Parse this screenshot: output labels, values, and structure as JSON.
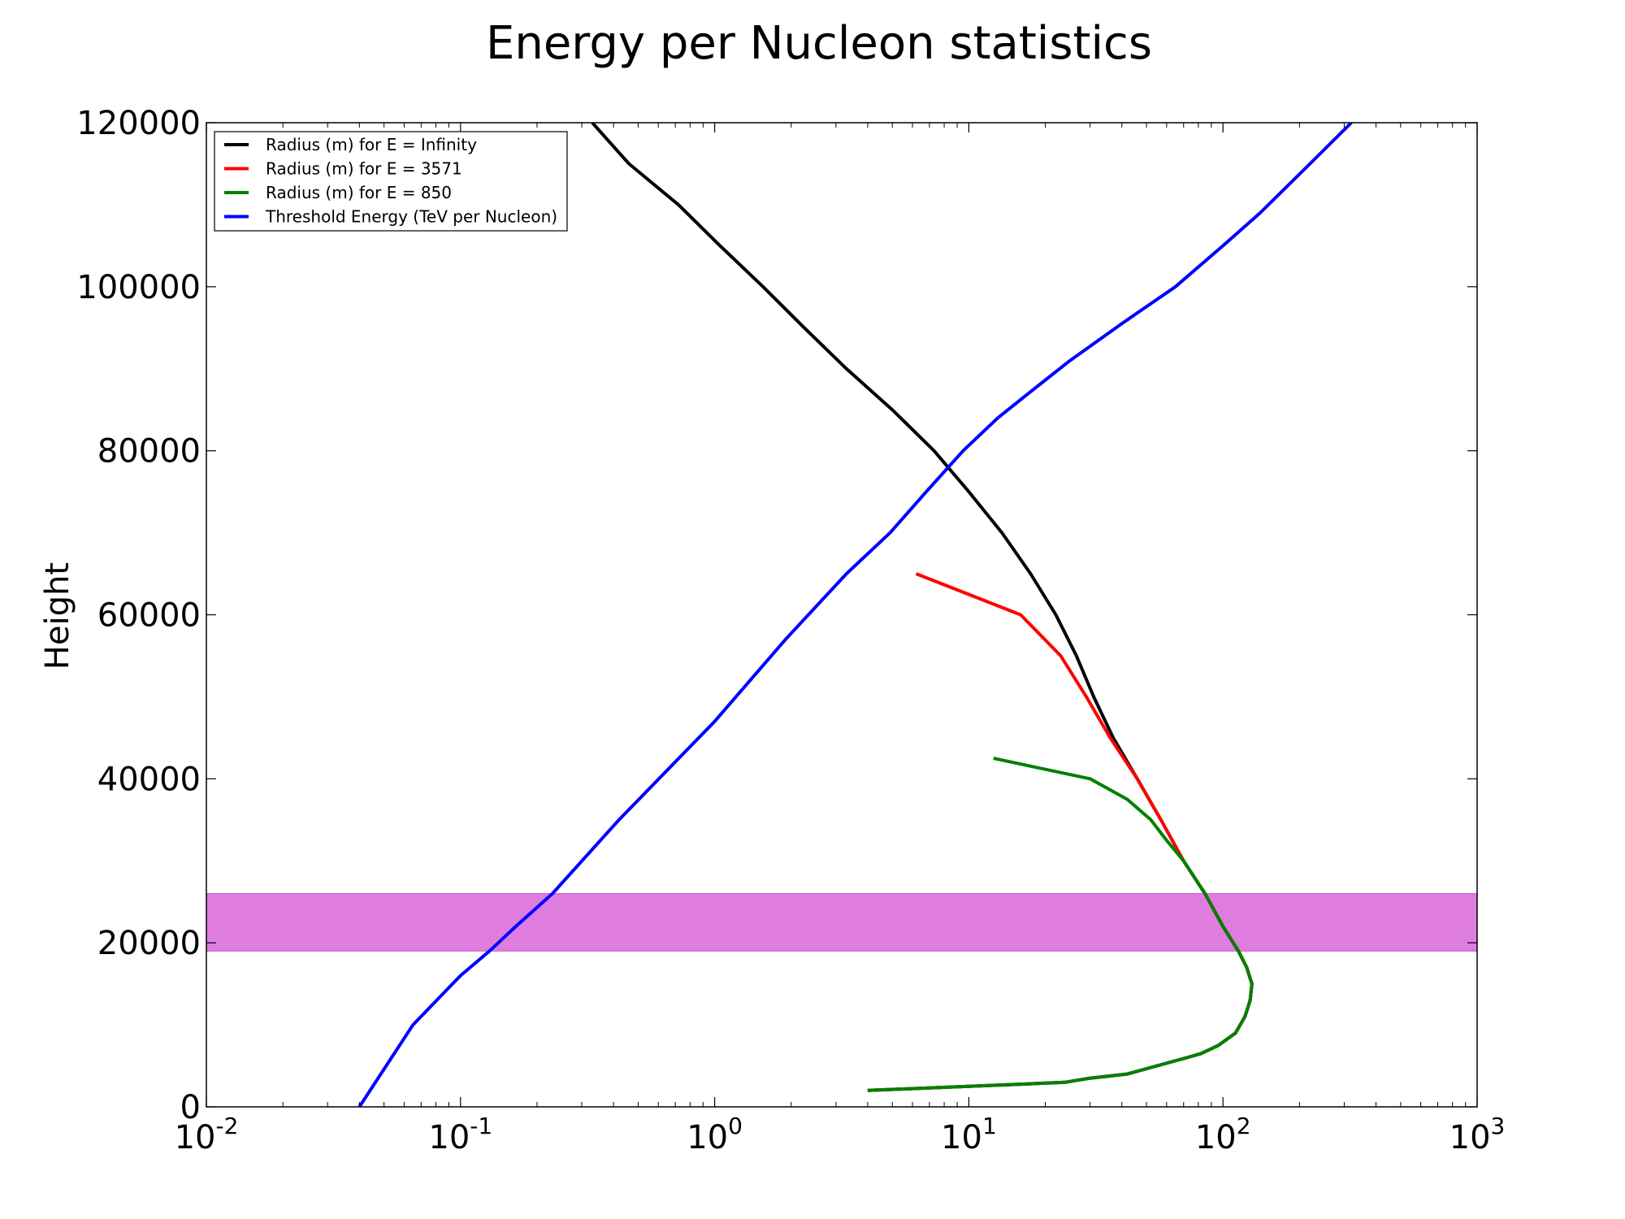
{
  "chart_data": {
    "type": "line",
    "title": "Energy per Nucleon statistics",
    "xlabel": "",
    "ylabel": "Height",
    "xscale": "log",
    "xlim": [
      0.01,
      1000
    ],
    "ylim": [
      0,
      120000
    ],
    "x_ticks": [
      {
        "value": 0.01,
        "base": "10",
        "exp": "-2"
      },
      {
        "value": 0.1,
        "base": "10",
        "exp": "-1"
      },
      {
        "value": 1,
        "base": "10",
        "exp": "0"
      },
      {
        "value": 10,
        "base": "10",
        "exp": "1"
      },
      {
        "value": 100,
        "base": "10",
        "exp": "2"
      },
      {
        "value": 1000,
        "base": "10",
        "exp": "3"
      }
    ],
    "y_ticks": [
      {
        "value": 0,
        "label": "0"
      },
      {
        "value": 20000,
        "label": "20000"
      },
      {
        "value": 40000,
        "label": "40000"
      },
      {
        "value": 60000,
        "label": "60000"
      },
      {
        "value": 80000,
        "label": "80000"
      },
      {
        "value": 100000,
        "label": "100000"
      },
      {
        "value": 120000,
        "label": "120000"
      }
    ],
    "grid": false,
    "legend_position": "top-left",
    "shaded_band": {
      "y_from": 19000,
      "y_to": 26000,
      "color": "#df7ddf"
    },
    "series": [
      {
        "name": "Radius (m) for E = Infinity",
        "color": "#000000",
        "points": [
          [
            0.33,
            120000
          ],
          [
            0.46,
            115000
          ],
          [
            0.72,
            110000
          ],
          [
            1.05,
            105000
          ],
          [
            1.55,
            100000
          ],
          [
            2.25,
            95000
          ],
          [
            3.3,
            90000
          ],
          [
            5.0,
            85000
          ],
          [
            7.3,
            80000
          ],
          [
            10.0,
            75000
          ],
          [
            13.5,
            70000
          ],
          [
            17.5,
            65000
          ],
          [
            22.0,
            60000
          ],
          [
            26.5,
            55000
          ],
          [
            31.0,
            50000
          ],
          [
            37.0,
            45000
          ],
          [
            46.0,
            40000
          ],
          [
            57.0,
            35000
          ],
          [
            70.0,
            30000
          ],
          [
            85.0,
            26000
          ],
          [
            100.0,
            22000
          ],
          [
            115.0,
            19000
          ],
          [
            124.0,
            17000
          ],
          [
            130.0,
            15000
          ],
          [
            128.0,
            13000
          ],
          [
            122.0,
            11000
          ],
          [
            112.0,
            9000
          ],
          [
            96.0,
            7500
          ],
          [
            82.0,
            6500
          ],
          [
            72.0,
            6000
          ],
          [
            55.0,
            5000
          ],
          [
            42.0,
            4000
          ],
          [
            30.0,
            3500
          ],
          [
            24.0,
            3000
          ],
          [
            12.0,
            2600
          ],
          [
            4.0,
            2000
          ]
        ]
      },
      {
        "name": "Radius (m) for E = 3571",
        "color": "#ff0000",
        "points": [
          [
            6.2,
            65000
          ],
          [
            16.0,
            60000
          ],
          [
            23.0,
            55000
          ],
          [
            29.0,
            50000
          ],
          [
            36.0,
            45000
          ],
          [
            46.0,
            40000
          ],
          [
            57.0,
            35000
          ],
          [
            70.0,
            30000
          ],
          [
            85.0,
            26000
          ],
          [
            100.0,
            22000
          ],
          [
            115.0,
            19000
          ],
          [
            124.0,
            17000
          ],
          [
            130.0,
            15000
          ],
          [
            128.0,
            13000
          ],
          [
            122.0,
            11000
          ],
          [
            112.0,
            9000
          ],
          [
            96.0,
            7500
          ],
          [
            82.0,
            6500
          ],
          [
            72.0,
            6000
          ],
          [
            55.0,
            5000
          ],
          [
            42.0,
            4000
          ],
          [
            30.0,
            3500
          ],
          [
            24.0,
            3000
          ],
          [
            12.0,
            2600
          ],
          [
            4.0,
            2000
          ]
        ]
      },
      {
        "name": "Radius (m) for E = 850",
        "color": "#008000",
        "points": [
          [
            12.5,
            42500
          ],
          [
            30.0,
            40000
          ],
          [
            42.0,
            37500
          ],
          [
            52.0,
            35000
          ],
          [
            60.0,
            32500
          ],
          [
            70.0,
            30000
          ],
          [
            85.0,
            26000
          ],
          [
            100.0,
            22000
          ],
          [
            115.0,
            19000
          ],
          [
            124.0,
            17000
          ],
          [
            130.0,
            15000
          ],
          [
            128.0,
            13000
          ],
          [
            122.0,
            11000
          ],
          [
            112.0,
            9000
          ],
          [
            96.0,
            7500
          ],
          [
            82.0,
            6500
          ],
          [
            72.0,
            6000
          ],
          [
            55.0,
            5000
          ],
          [
            42.0,
            4000
          ],
          [
            30.0,
            3500
          ],
          [
            24.0,
            3000
          ],
          [
            12.0,
            2600
          ],
          [
            4.0,
            2000
          ]
        ]
      },
      {
        "name": "Threshold Energy (TeV per Nucleon)",
        "color": "#0000ff",
        "points": [
          [
            0.04,
            0
          ],
          [
            0.065,
            10000
          ],
          [
            0.1,
            16000
          ],
          [
            0.13,
            19000
          ],
          [
            0.165,
            22000
          ],
          [
            0.23,
            26000
          ],
          [
            0.42,
            35000
          ],
          [
            1.0,
            47000
          ],
          [
            1.9,
            57000
          ],
          [
            3.3,
            65000
          ],
          [
            4.9,
            70000
          ],
          [
            6.8,
            75000
          ],
          [
            9.5,
            80000
          ],
          [
            13.0,
            84000
          ],
          [
            18.0,
            87500
          ],
          [
            25.0,
            91000
          ],
          [
            40.0,
            95500
          ],
          [
            65.0,
            100000
          ],
          [
            100.0,
            105000
          ],
          [
            140.0,
            109000
          ],
          [
            220.0,
            115000
          ],
          [
            320.0,
            120000
          ]
        ]
      }
    ]
  }
}
